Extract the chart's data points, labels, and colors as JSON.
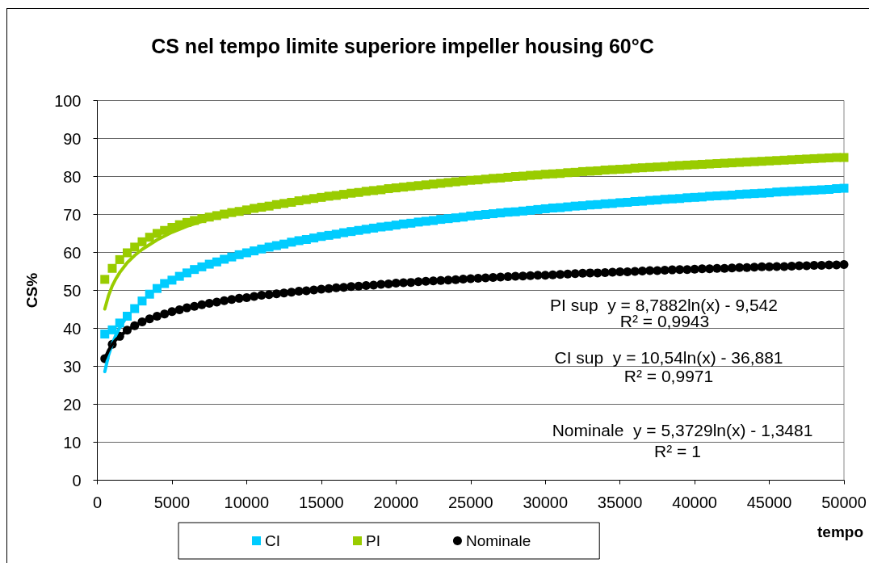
{
  "chart_data": {
    "type": "scatter",
    "title": "CS nel tempo limite superiore impeller housing 60°C",
    "xlabel": "tempo",
    "ylabel": "CS%",
    "x": [
      500,
      1000,
      1500,
      2000,
      2500,
      3000,
      3500,
      4000,
      4500,
      5000,
      5500,
      6000,
      6500,
      7000,
      7500,
      8000,
      8500,
      9000,
      9500,
      10000,
      10500,
      11000,
      11500,
      12000,
      12500,
      13000,
      13500,
      14000,
      14500,
      15000,
      15500,
      16000,
      16500,
      17000,
      17500,
      18000,
      18500,
      19000,
      19500,
      20000,
      20500,
      21000,
      21500,
      22000,
      22500,
      23000,
      23500,
      24000,
      24500,
      25000,
      25500,
      26000,
      26500,
      27000,
      27500,
      28000,
      28500,
      29000,
      29500,
      30000,
      30500,
      31000,
      31500,
      32000,
      32500,
      33000,
      33500,
      34000,
      34500,
      35000,
      35500,
      36000,
      36500,
      37000,
      37500,
      38000,
      38500,
      39000,
      39500,
      40000,
      40500,
      41000,
      41500,
      42000,
      42500,
      43000,
      43500,
      44000,
      44500,
      45000,
      45500,
      46000,
      46500,
      47000,
      47500,
      48000,
      48500,
      49000,
      49500,
      50000
    ],
    "series": [
      {
        "name": "CI",
        "color": "#00ccff",
        "marker": "square",
        "values": [
          38.5,
          39.6,
          41.4,
          43.2,
          45.2,
          47.2,
          49.0,
          50.5,
          51.8,
          52.7,
          53.7,
          54.6,
          55.5,
          56.2,
          56.9,
          57.5,
          58.2,
          58.8,
          59.4,
          59.9,
          60.4,
          60.9,
          61.4,
          61.8,
          62.2,
          62.7,
          63.1,
          63.4,
          63.8,
          64.2,
          64.5,
          64.8,
          65.2,
          65.5,
          65.8,
          66.1,
          66.4,
          66.7,
          66.9,
          67.2,
          67.5,
          67.7,
          68.0,
          68.2,
          68.4,
          68.7,
          68.9,
          69.1,
          69.3,
          69.6,
          69.8,
          70.0,
          70.2,
          70.4,
          70.6,
          70.7,
          70.9,
          71.1,
          71.3,
          71.5,
          71.7,
          71.8,
          72.0,
          72.2,
          72.3,
          72.5,
          72.6,
          72.8,
          72.9,
          73.1,
          73.2,
          73.4,
          73.5,
          73.7,
          73.8,
          74.0,
          74.1,
          74.2,
          74.4,
          74.5,
          74.6,
          74.8,
          74.9,
          75.0,
          75.1,
          75.3,
          75.4,
          75.5,
          75.6,
          75.7,
          75.9,
          76.0,
          76.1,
          76.2,
          76.3,
          76.4,
          76.5,
          76.6,
          76.8,
          76.9
        ]
      },
      {
        "name": "PI",
        "color": "#99cc00",
        "marker": "square",
        "values": [
          52.9,
          55.8,
          58.1,
          59.9,
          61.4,
          62.8,
          64.0,
          65.0,
          65.8,
          66.6,
          67.3,
          67.9,
          68.4,
          68.9,
          69.3,
          69.7,
          70.1,
          70.5,
          70.8,
          71.2,
          71.6,
          71.9,
          72.2,
          72.6,
          72.9,
          73.2,
          73.6,
          73.9,
          74.2,
          74.5,
          74.8,
          75.0,
          75.3,
          75.6,
          75.8,
          76.1,
          76.3,
          76.5,
          76.8,
          77.0,
          77.2,
          77.4,
          77.6,
          77.8,
          78.0,
          78.2,
          78.4,
          78.6,
          78.8,
          79.0,
          79.1,
          79.3,
          79.5,
          79.6,
          79.8,
          80.0,
          80.1,
          80.3,
          80.4,
          80.6,
          80.7,
          80.8,
          81.0,
          81.1,
          81.3,
          81.4,
          81.5,
          81.7,
          81.8,
          81.9,
          82.0,
          82.2,
          82.3,
          82.4,
          82.5,
          82.6,
          82.8,
          82.9,
          83.0,
          83.1,
          83.2,
          83.3,
          83.4,
          83.5,
          83.6,
          83.7,
          83.8,
          83.9,
          84.0,
          84.1,
          84.2,
          84.3,
          84.4,
          84.5,
          84.6,
          84.7,
          84.8,
          84.9,
          85.0,
          85.0
        ]
      },
      {
        "name": "Nominale",
        "color": "#000000",
        "marker": "circle",
        "values": [
          32.0,
          35.8,
          37.9,
          39.5,
          40.7,
          41.7,
          42.5,
          43.2,
          43.8,
          44.4,
          44.9,
          45.4,
          45.8,
          46.2,
          46.6,
          46.9,
          47.3,
          47.6,
          47.9,
          48.1,
          48.4,
          48.7,
          48.9,
          49.1,
          49.3,
          49.5,
          49.8,
          49.9,
          50.1,
          50.3,
          50.5,
          50.7,
          50.8,
          51.0,
          51.1,
          51.3,
          51.4,
          51.6,
          51.7,
          51.9,
          52.0,
          52.1,
          52.3,
          52.4,
          52.5,
          52.6,
          52.7,
          52.8,
          53.0,
          53.1,
          53.2,
          53.3,
          53.4,
          53.5,
          53.6,
          53.7,
          53.8,
          53.9,
          54.0,
          54.0,
          54.1,
          54.2,
          54.3,
          54.4,
          54.5,
          54.6,
          54.6,
          54.7,
          54.8,
          54.9,
          54.9,
          55.0,
          55.1,
          55.2,
          55.2,
          55.3,
          55.4,
          55.5,
          55.5,
          55.6,
          55.7,
          55.7,
          55.8,
          55.8,
          55.9,
          56.0,
          56.0,
          56.1,
          56.2,
          56.2,
          56.3,
          56.3,
          56.4,
          56.5,
          56.5,
          56.6,
          56.6,
          56.7,
          56.7,
          56.8
        ]
      },
      {
        "type": "line",
        "color": "#00ccff",
        "marker": "none",
        "x": [
          500,
          750,
          1000,
          1250,
          1500,
          2000
        ],
        "values": [
          28.6,
          32.9,
          35.9,
          38.3,
          40.2,
          43.2
        ]
      },
      {
        "type": "line",
        "color": "#99cc00",
        "marker": "none",
        "x": [
          500,
          750,
          1000,
          1250,
          1500,
          2000,
          2500,
          3000,
          4000,
          5000,
          6000,
          8000
        ],
        "values": [
          45.1,
          48.6,
          51.2,
          53.1,
          54.7,
          57.3,
          59.2,
          60.8,
          63.3,
          65.3,
          66.9,
          69.4
        ]
      },
      {
        "type": "line",
        "color": "#000000",
        "marker": "none",
        "x": [
          500,
          750,
          1000,
          1250,
          1500,
          2000,
          2500,
          3000
        ],
        "values": [
          32.0,
          34.2,
          35.8,
          37.0,
          37.9,
          39.5,
          40.7,
          41.7
        ]
      }
    ],
    "xlim": [
      0,
      50000
    ],
    "xticks": [
      0,
      5000,
      10000,
      15000,
      20000,
      25000,
      30000,
      35000,
      40000,
      45000,
      50000
    ],
    "ylim": [
      0,
      100
    ],
    "yticks": [
      0,
      10,
      20,
      30,
      40,
      50,
      60,
      70,
      80,
      90,
      100
    ],
    "grid": "y",
    "legend": "bottom",
    "annotations": [
      "PI sup  y = 8,7882ln(x) - 9,542\nR² = 0,9943",
      "CI sup  y = 10,54ln(x) - 36,881\nR² = 0,9971",
      "Nominale  y = 5,3729ln(x) - 1,3481\nR² = 1"
    ]
  }
}
